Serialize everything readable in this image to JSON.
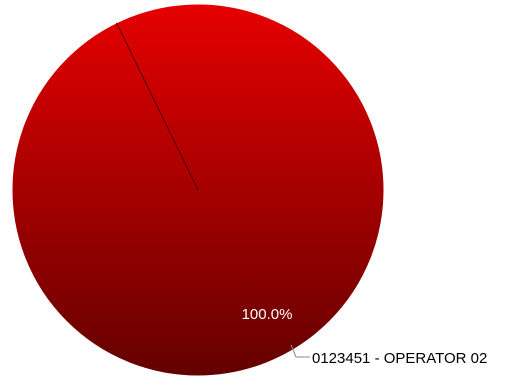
{
  "chart_data": {
    "type": "pie",
    "title": "",
    "categories": [
      "0123451 - OPERATOR 02"
    ],
    "values": [
      100.0
    ],
    "data_labels": [
      "100.0%"
    ],
    "colors": {
      "slice_top": "#e60000",
      "slice_bottom": "#640000",
      "slice_edge": "#3a0000",
      "leader_line": "#8a8a8a",
      "data_label": "#ffffff",
      "category_label": "#000000"
    },
    "legend": "none"
  }
}
